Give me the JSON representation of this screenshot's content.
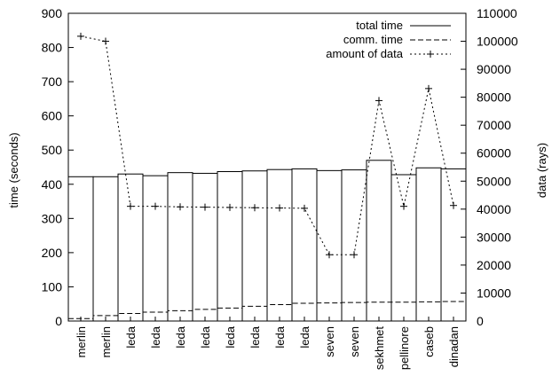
{
  "chart_data": {
    "type": "bar",
    "categories": [
      "merlin",
      "merlin",
      "leda",
      "leda",
      "leda",
      "leda",
      "leda",
      "leda",
      "leda",
      "leda",
      "seven",
      "seven",
      "sekhmet",
      "pellinore",
      "caseb",
      "dinadan"
    ],
    "y_left": {
      "label": "time (seconds)",
      "ylim": [
        0,
        900
      ],
      "ticks": [
        0,
        100,
        200,
        300,
        400,
        500,
        600,
        700,
        800,
        900
      ]
    },
    "y_right": {
      "label": "data (rays)",
      "ylim": [
        0,
        110000
      ],
      "ticks": [
        0,
        10000,
        20000,
        30000,
        40000,
        50000,
        60000,
        70000,
        80000,
        90000,
        100000,
        110000
      ]
    },
    "series": [
      {
        "name": "total time",
        "axis": "left",
        "style": "bar",
        "values": [
          422,
          422,
          430,
          425,
          434,
          432,
          437,
          439,
          443,
          445,
          440,
          442,
          470,
          428,
          448,
          445
        ]
      },
      {
        "name": "comm. time",
        "axis": "left",
        "style": "dashed-step",
        "values": [
          7,
          16,
          22,
          26,
          30,
          34,
          38,
          43,
          48,
          52,
          53,
          54,
          55,
          55,
          56,
          57
        ]
      },
      {
        "name": "amount of data",
        "axis": "right",
        "style": "dotted-points",
        "values": [
          101800,
          100000,
          41000,
          41000,
          40800,
          40700,
          40600,
          40500,
          40400,
          40300,
          23700,
          23700,
          78800,
          41000,
          83100,
          41300
        ]
      }
    ],
    "legend": {
      "placement": "top-right"
    },
    "grid": false
  }
}
